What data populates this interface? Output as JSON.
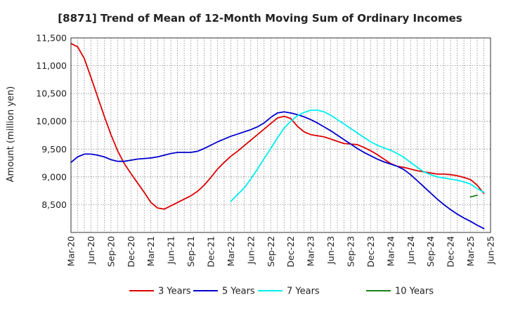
{
  "chart_data": {
    "type": "line",
    "title": "[8871]  Trend of Mean of 12-Month Moving Sum of Ordinary Incomes",
    "xlabel": "",
    "ylabel": "Amount (million yen)",
    "ylim": [
      8000,
      11500
    ],
    "yticks": [
      8500,
      9000,
      9500,
      10000,
      10500,
      11000,
      11500
    ],
    "ytick_labels": [
      "8,500",
      "9,000",
      "9,500",
      "10,000",
      "10,500",
      "11,000",
      "11,500"
    ],
    "x_start": "Mar-20",
    "x_months": 63,
    "xtick_labels": [
      "Mar-20",
      "Jun-20",
      "Sep-20",
      "Dec-20",
      "Mar-21",
      "Jun-21",
      "Sep-21",
      "Dec-21",
      "Mar-22",
      "Jun-22",
      "Sep-22",
      "Dec-22",
      "Mar-23",
      "Jun-23",
      "Sep-23",
      "Dec-23",
      "Mar-24",
      "Jun-24",
      "Sep-24",
      "Dec-24",
      "Mar-25",
      "Jun-25"
    ],
    "grid": true,
    "legend_position": "bottom",
    "series": [
      {
        "name": "3 Years",
        "color": "#dd0000",
        "start_index": 0,
        "values": [
          11400,
          11340,
          11130,
          10790,
          10440,
          10090,
          9760,
          9470,
          9240,
          9060,
          8890,
          8720,
          8540,
          8440,
          8420,
          8480,
          8540,
          8600,
          8660,
          8740,
          8850,
          8990,
          9140,
          9260,
          9370,
          9460,
          9560,
          9660,
          9760,
          9860,
          9960,
          10060,
          10090,
          10050,
          9910,
          9810,
          9760,
          9740,
          9720,
          9680,
          9640,
          9600,
          9590,
          9580,
          9530,
          9470,
          9400,
          9320,
          9240,
          9190,
          9170,
          9140,
          9110,
          9090,
          9070,
          9050,
          9050,
          9040,
          9020,
          8990,
          8950,
          8850,
          8700
        ]
      },
      {
        "name": "5 Years",
        "color": "#0000cc",
        "start_index": 0,
        "values": [
          9260,
          9360,
          9410,
          9410,
          9390,
          9360,
          9310,
          9280,
          9280,
          9300,
          9320,
          9330,
          9340,
          9360,
          9390,
          9420,
          9440,
          9440,
          9440,
          9460,
          9510,
          9570,
          9630,
          9680,
          9730,
          9770,
          9810,
          9850,
          9900,
          9970,
          10070,
          10150,
          10170,
          10150,
          10120,
          10080,
          10030,
          9970,
          9900,
          9830,
          9750,
          9670,
          9590,
          9510,
          9440,
          9380,
          9320,
          9270,
          9230,
          9190,
          9130,
          9040,
          8930,
          8820,
          8710,
          8600,
          8500,
          8410,
          8330,
          8260,
          8200,
          8130,
          8070
        ]
      },
      {
        "name": "7 Years",
        "color": "#00eeee",
        "start_index": 24,
        "values": [
          8560,
          8680,
          8800,
          8960,
          9140,
          9330,
          9510,
          9700,
          9880,
          10000,
          10100,
          10160,
          10200,
          10200,
          10170,
          10110,
          10030,
          9950,
          9870,
          9790,
          9710,
          9630,
          9570,
          9520,
          9480,
          9420,
          9350,
          9260,
          9170,
          9090,
          9040,
          9000,
          8980,
          8960,
          8940,
          8910,
          8870,
          8790,
          8720
        ]
      },
      {
        "name": "10 Years",
        "color": "#1b7f1b",
        "start_index": 60,
        "values": [
          8640,
          8670
        ]
      }
    ]
  }
}
